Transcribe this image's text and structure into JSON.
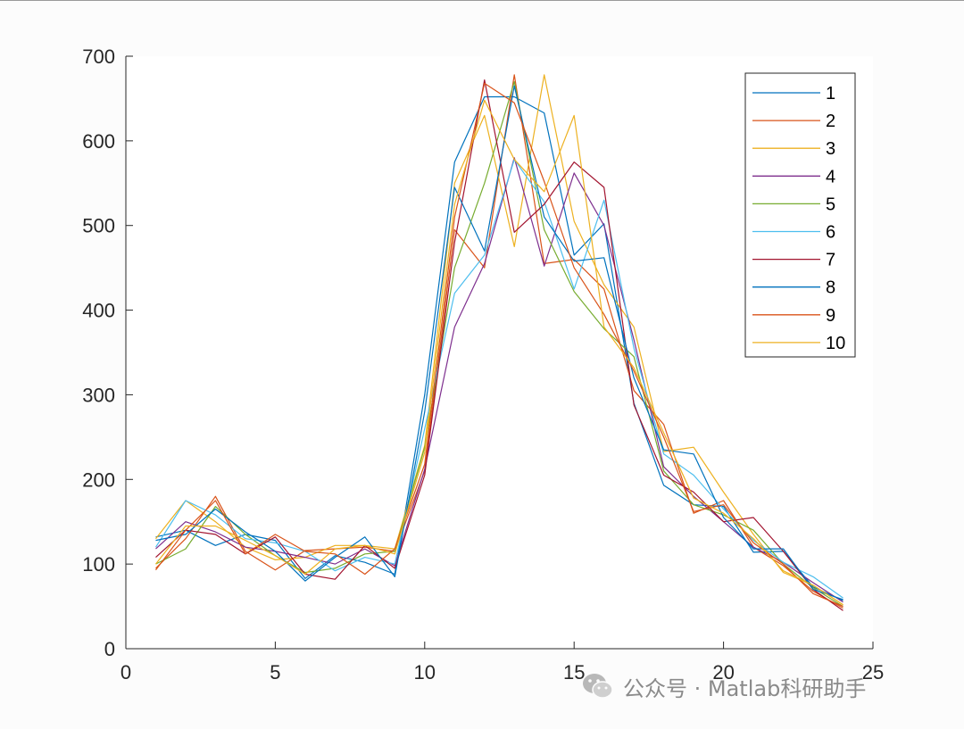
{
  "chart_data": {
    "type": "line",
    "title": "",
    "xlabel": "",
    "ylabel": "",
    "xlim": [
      0,
      25
    ],
    "ylim": [
      0,
      700
    ],
    "x_ticks": [
      0,
      5,
      10,
      15,
      20,
      25
    ],
    "y_ticks": [
      0,
      100,
      200,
      300,
      400,
      500,
      600,
      700
    ],
    "legend_position": "top-right",
    "x": [
      1,
      2,
      3,
      4,
      5,
      6,
      7,
      8,
      9,
      10,
      11,
      12,
      13,
      14,
      15,
      16,
      17,
      18,
      19,
      20,
      21,
      22,
      23,
      24
    ],
    "series": [
      {
        "name": "1",
        "color": "#0072BD",
        "values": [
          132,
          140,
          122,
          135,
          128,
          83,
          110,
          102,
          88,
          300,
          575,
          652,
          652,
          633,
          465,
          502,
          290,
          193,
          170,
          168,
          114,
          115,
          73,
          57
        ]
      },
      {
        "name": "2",
        "color": "#D95319",
        "values": [
          95,
          130,
          180,
          115,
          93,
          116,
          118,
          120,
          115,
          210,
          495,
          450,
          678,
          455,
          460,
          425,
          305,
          265,
          160,
          175,
          120,
          98,
          68,
          48
        ]
      },
      {
        "name": "3",
        "color": "#EDB120",
        "values": [
          130,
          175,
          150,
          120,
          105,
          108,
          122,
          122,
          118,
          240,
          550,
          630,
          475,
          678,
          505,
          430,
          380,
          233,
          238,
          185,
          135,
          90,
          75,
          52
        ]
      },
      {
        "name": "4",
        "color": "#7E2F8E",
        "values": [
          118,
          150,
          138,
          120,
          115,
          108,
          100,
          118,
          98,
          212,
          380,
          455,
          580,
          452,
          562,
          500,
          365,
          215,
          180,
          150,
          120,
          102,
          78,
          55
        ]
      },
      {
        "name": "5",
        "color": "#77AC30",
        "values": [
          100,
          118,
          168,
          135,
          110,
          90,
          95,
          112,
          115,
          238,
          450,
          550,
          670,
          495,
          422,
          378,
          345,
          210,
          170,
          158,
          140,
          100,
          72,
          50
        ]
      },
      {
        "name": "6",
        "color": "#4DBEEE",
        "values": [
          120,
          175,
          158,
          130,
          125,
          115,
          92,
          108,
          100,
          260,
          420,
          465,
          578,
          528,
          425,
          530,
          355,
          230,
          205,
          165,
          128,
          102,
          85,
          60
        ]
      },
      {
        "name": "7",
        "color": "#A2142F",
        "values": [
          108,
          140,
          135,
          112,
          132,
          88,
          82,
          122,
          95,
          205,
          480,
          672,
          492,
          525,
          575,
          545,
          288,
          205,
          185,
          150,
          155,
          115,
          70,
          45
        ]
      },
      {
        "name": "8",
        "color": "#0072BD",
        "values": [
          128,
          135,
          165,
          138,
          115,
          80,
          108,
          132,
          85,
          280,
          545,
          470,
          665,
          510,
          458,
          462,
          320,
          235,
          230,
          155,
          118,
          118,
          70,
          58
        ]
      },
      {
        "name": "9",
        "color": "#D95319",
        "values": [
          93,
          140,
          175,
          112,
          135,
          115,
          112,
          88,
          118,
          218,
          510,
          668,
          645,
          552,
          450,
          395,
          328,
          250,
          162,
          170,
          125,
          100,
          65,
          50
        ]
      },
      {
        "name": "10",
        "color": "#EDB120",
        "values": [
          100,
          145,
          145,
          128,
          110,
          88,
          118,
          122,
          112,
          232,
          525,
          648,
          578,
          540,
          630,
          380,
          332,
          255,
          178,
          160,
          130,
          92,
          75,
          52
        ]
      }
    ]
  },
  "watermark": {
    "text": "公众号 · Matlab科研助手"
  }
}
